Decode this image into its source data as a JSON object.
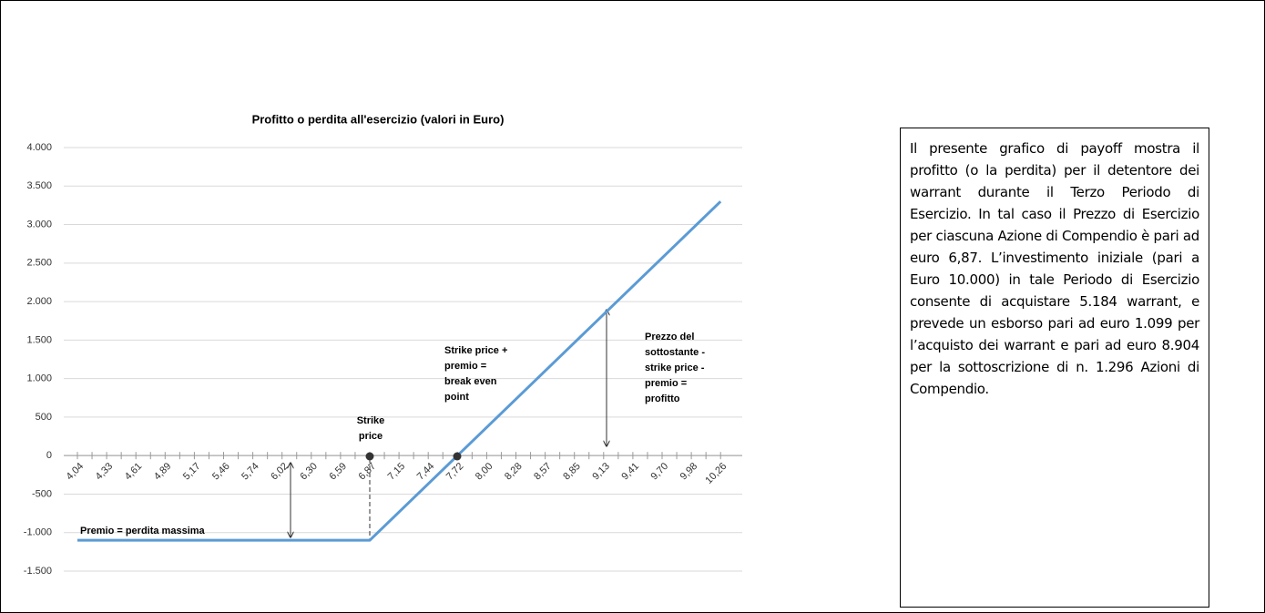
{
  "chart_data": {
    "type": "line",
    "title": "Profitto o perdita all'esercizio (valori in Euro)",
    "categories": [
      "4,04",
      null,
      "4,33",
      null,
      "4,61",
      null,
      "4,89",
      null,
      "5,17",
      null,
      "5,46",
      null,
      "5,74",
      null,
      "6,02",
      null,
      "6,30",
      null,
      "6,59",
      null,
      "6,87",
      null,
      "7,15",
      null,
      "7,44",
      null,
      "7,72",
      null,
      "8,00",
      null,
      "8,28",
      null,
      "8,57",
      null,
      "8,85",
      null,
      "9,13",
      null,
      "9,41",
      null,
      "9,70",
      null,
      "9,98",
      null,
      "10,26"
    ],
    "values": [
      -1100,
      -1100,
      -1100,
      -1100,
      -1100,
      -1100,
      -1100,
      -1100,
      -1100,
      -1100,
      -1100,
      -1100,
      -1100,
      -1100,
      -1100,
      -1100,
      -1100,
      -1100,
      -1100,
      -1100,
      -1100,
      -917,
      -733,
      -550,
      -367,
      -183,
      0,
      183,
      367,
      550,
      733,
      917,
      1100,
      1283,
      1467,
      1650,
      1833,
      2017,
      2200,
      2383,
      2567,
      2750,
      2933,
      3117,
      3300
    ],
    "color": "#5b9bd5",
    "ylim": [
      -1500,
      4000
    ],
    "yticks": [
      {
        "value": -1500,
        "label": "-1.500"
      },
      {
        "value": -1000,
        "label": "-1.000"
      },
      -500,
      0,
      500,
      {
        "value": 1000,
        "label": "1.000"
      },
      {
        "value": 1500,
        "label": "1.500"
      },
      {
        "value": 2000,
        "label": "2.000"
      },
      {
        "value": 2500,
        "label": "2.500"
      },
      {
        "value": 3000,
        "label": "3.000"
      },
      {
        "value": 3500,
        "label": "3.500"
      },
      {
        "value": 4000,
        "label": "4.000"
      }
    ],
    "grid": true,
    "annotations": [
      {
        "lines": [
          "Premio = perdita massima"
        ]
      },
      {
        "lines": [
          "Strike",
          "price"
        ]
      },
      {
        "lines": [
          "Strike price +",
          "premio =",
          "break even",
          "point"
        ]
      },
      {
        "lines": [
          "Prezzo del",
          "sottostante -",
          "strike price -",
          "premio =",
          "profitto"
        ]
      }
    ]
  },
  "note": "Il presente grafico di payoff mostra il profitto (o la perdita) per il detentore dei warrant durante il Terzo  Periodo di Esercizio. In tal caso il Prezzo di Esercizio per ciascuna Azione di Compendio è pari ad euro 6,87. L’investimento iniziale (pari a Euro 10.000) in tale Periodo di Esercizio consente di acquistare 5.184 warrant, e prevede un esborso pari ad euro 1.099 per l’acquisto dei warrant e pari ad euro 8.904 per la sottoscrizione di n. 1.296 Azioni di Compendio."
}
